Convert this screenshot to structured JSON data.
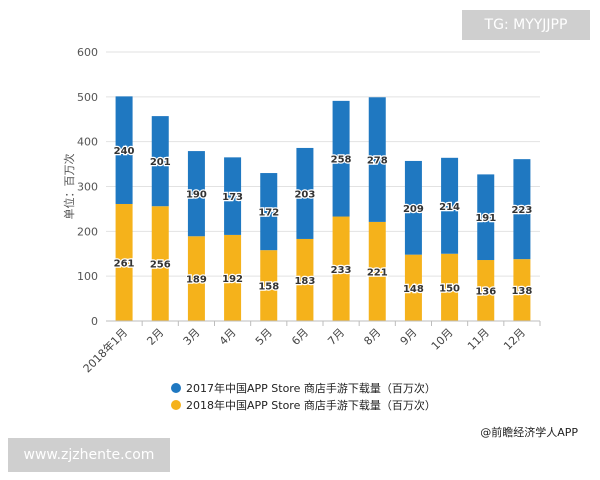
{
  "watermarks": {
    "top_right": "TG: MYYJJPP",
    "bottom_left": "www.zjzhente.com"
  },
  "source": "@前瞻经济学人APP",
  "colors": {
    "series_2017": "#1f78c1",
    "series_2018": "#f5b21b",
    "grid": "#e2e2e2",
    "axis": "#bdbdbd"
  },
  "chart_data": {
    "type": "bar",
    "stacked": true,
    "categories": [
      "2018年1月",
      "2月",
      "3月",
      "4月",
      "5月",
      "6月",
      "7月",
      "8月",
      "9月",
      "10月",
      "11月",
      "12月"
    ],
    "series": [
      {
        "name": "2017年中国APP Store 商店手游下载量（百万次）",
        "values": [
          240,
          201,
          190,
          173,
          172,
          203,
          258,
          278,
          209,
          214,
          191,
          223
        ]
      },
      {
        "name": "2018年中国APP Store 商店手游下载量（百万次）",
        "values": [
          261,
          256,
          189,
          192,
          158,
          183,
          233,
          221,
          148,
          150,
          136,
          138
        ]
      }
    ],
    "ylabel": "单位：百万次",
    "ylim": [
      0,
      600
    ],
    "yticks": [
      0,
      100,
      200,
      300,
      400,
      500,
      600
    ],
    "grid": true,
    "legend_position": "bottom"
  }
}
